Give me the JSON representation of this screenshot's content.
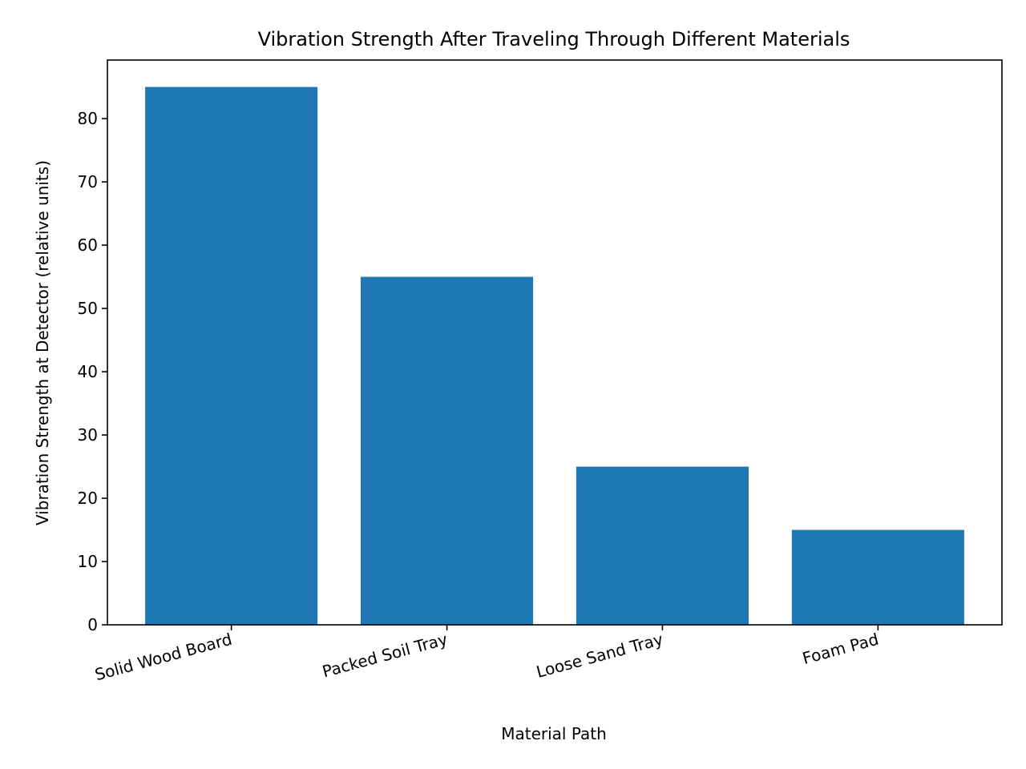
{
  "chart_data": {
    "type": "bar",
    "title": "Vibration Strength After Traveling Through Different Materials",
    "xlabel": "Material Path",
    "ylabel": "Vibration Strength at Detector (relative units)",
    "categories": [
      "Solid Wood Board",
      "Packed Soil Tray",
      "Loose Sand Tray",
      "Foam Pad"
    ],
    "values": [
      85,
      55,
      25,
      15
    ],
    "ylim": [
      0,
      89.25
    ],
    "yticks": [
      0,
      10,
      20,
      30,
      40,
      50,
      60,
      70,
      80
    ],
    "ytick_labels": [
      "0",
      "10",
      "20",
      "30",
      "40",
      "50",
      "60",
      "70",
      "80"
    ],
    "bar_color": "#1f77b4",
    "grid": false,
    "legend": "none"
  }
}
